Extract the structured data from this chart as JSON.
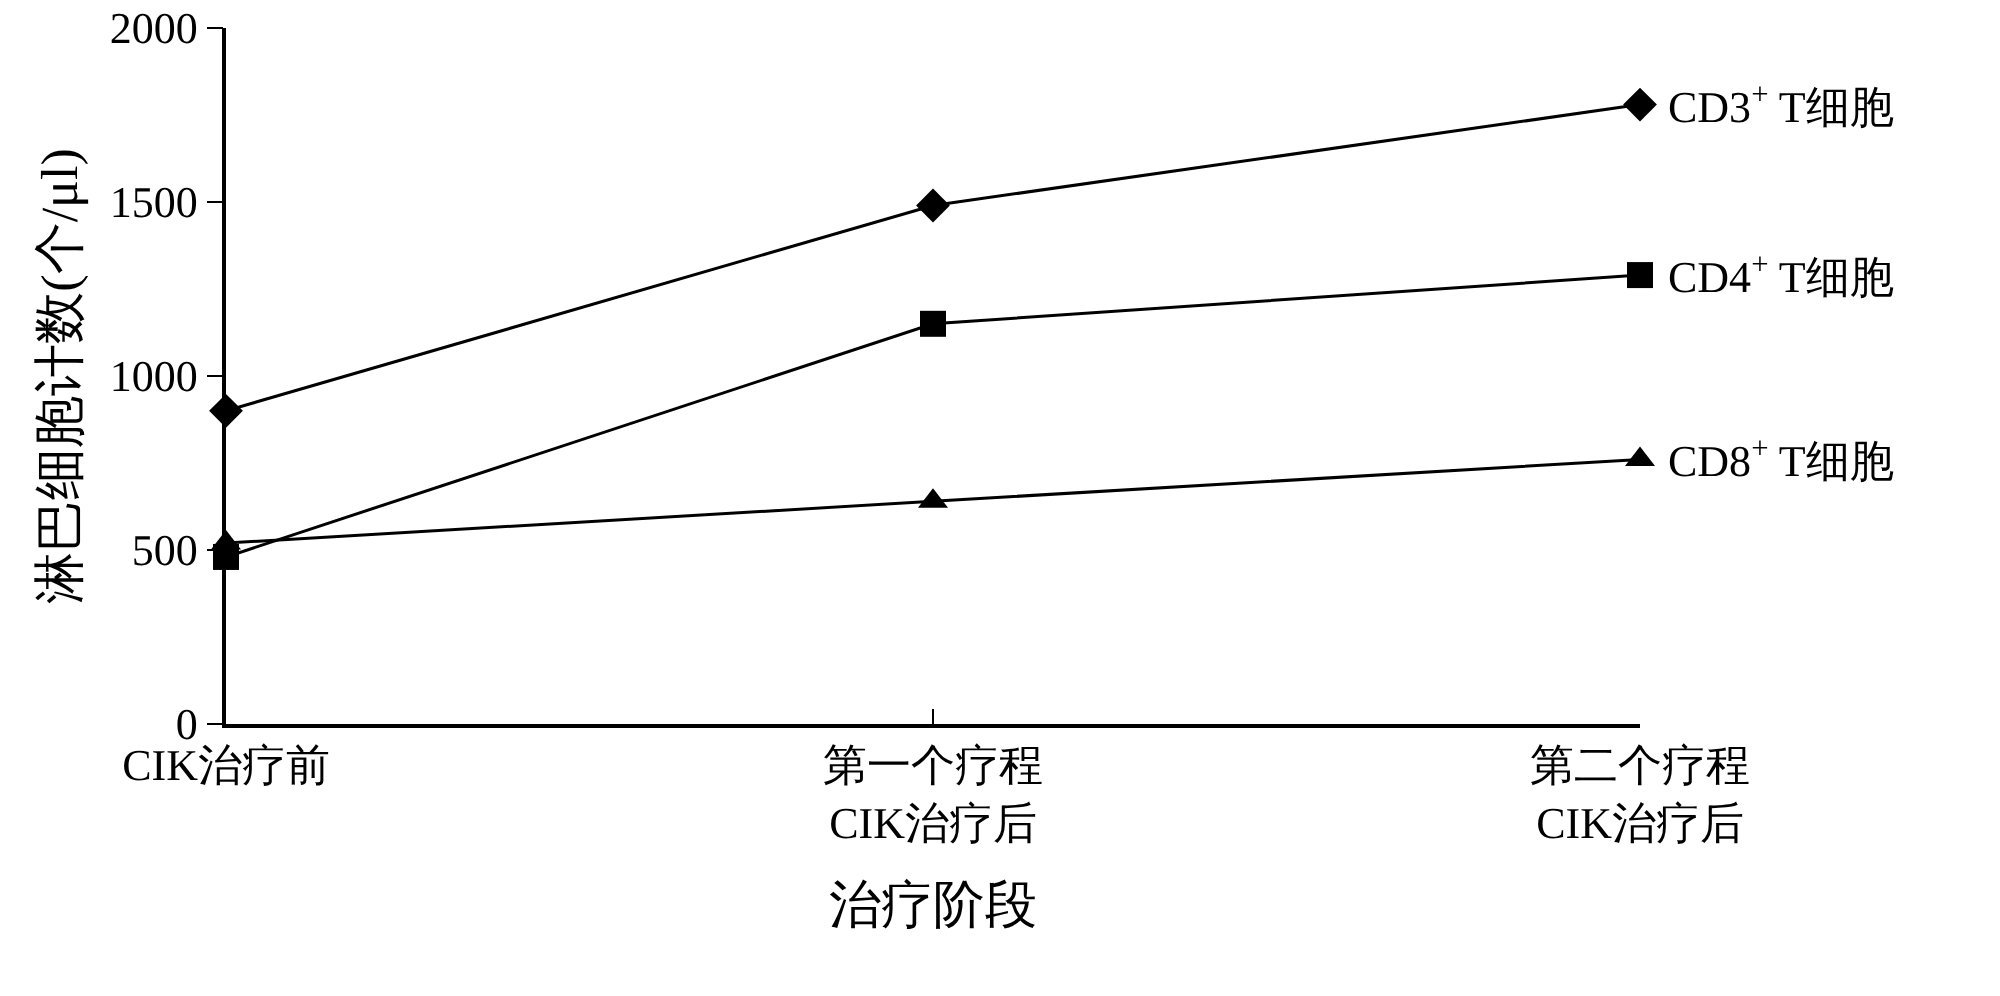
{
  "chart_data": {
    "type": "line",
    "xlabel": "治疗阶段",
    "ylabel": "淋巴细胞计数(个/μl)",
    "categories": [
      "CIK治疗前",
      "第一个疗程\nCIK治疗后",
      "第二个疗程\nCIK治疗后"
    ],
    "series": [
      {
        "name": "CD3$^{+}$ T细胞",
        "color": "#000000",
        "marker": "diamond",
        "values": [
          900,
          1490,
          1780
        ]
      },
      {
        "name": "CD4$^{+}$ T细胞",
        "color": "#000000",
        "marker": "square",
        "values": [
          480,
          1150,
          1290
        ]
      },
      {
        "name": "CD8$^{+}$ T细胞",
        "color": "#000000",
        "marker": "triangle",
        "values": [
          520,
          640,
          760
        ]
      }
    ],
    "ylim": [
      0,
      2000
    ],
    "yticks": [
      0,
      500,
      1000,
      1500,
      2000
    ],
    "grid": false,
    "legend": false,
    "line_style": "solid"
  }
}
